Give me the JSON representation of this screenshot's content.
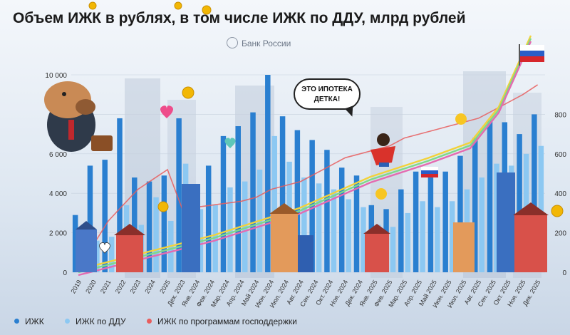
{
  "title": "Объем ИЖК в рублях, в том числе ИЖК по ДДУ, млрд рублей",
  "source": "Банк России",
  "speech_bubble": "ЭТО ИПОТЕКА ДЕТКА!",
  "colors": {
    "izhk": "#2a7fd0",
    "izhk_ddu": "#8cc8f2",
    "gov_programs": "#e85d5d",
    "trend_yellow": "#f2d23a",
    "trend_green": "#7fd88a",
    "trend_pink": "#e46bb0"
  },
  "icons": [
    "capybara-mascot-icon",
    "flag-russia-icon",
    "coin-icon",
    "house-icon",
    "superhero-character-icon",
    "heart-icon",
    "smiley-icon"
  ],
  "chart_data": {
    "type": "bar",
    "categories": [
      "2019",
      "2020",
      "2021",
      "2022",
      "2023",
      "2024",
      "2025",
      "Дек. 2023",
      "Янв. 2024",
      "Фев. 2024",
      "Мар. 2024",
      "Апр. 2024",
      "Май 2024",
      "Июн. 2024",
      "Июл. 2024",
      "Авг. 2024",
      "Сен. 2024",
      "Окт. 2024",
      "Ноя. 2024",
      "Дек. 2024",
      "Янв. 2025",
      "Фев. 2025",
      "Мар. 2025",
      "Апр. 2025",
      "Май 2025",
      "Июн. 2025",
      "Июл. 2025",
      "Авг. 2025",
      "Сен. 2025",
      "Окт. 2025",
      "Ноя. 2025",
      "Дек. 2025"
    ],
    "left_axis": {
      "ticks": [
        "0",
        "2 000",
        "4 000",
        "6 000",
        "8 000",
        "10 000"
      ],
      "ylim": [
        0,
        10000
      ]
    },
    "right_axis": {
      "ticks": [
        "0",
        "200",
        "400",
        "600",
        "800"
      ],
      "ylim": [
        0,
        1000
      ]
    },
    "series": [
      {
        "name": "ИЖК",
        "axis": "left",
        "values": [
          2900,
          5400,
          5700,
          7800,
          4800,
          4600,
          4900,
          780,
          430,
          540,
          690,
          740,
          810,
          1000,
          790,
          720,
          670,
          620,
          530,
          490,
          340,
          320,
          420,
          510,
          480,
          510,
          590,
          680,
          770,
          760,
          700,
          800
        ]
      },
      {
        "name": "ИЖК по ДДУ",
        "axis": "left",
        "values": [
          1000,
          1600,
          1800,
          3400,
          2400,
          3800,
          2600,
          550,
          320,
          340,
          430,
          460,
          520,
          690,
          560,
          480,
          450,
          420,
          370,
          330,
          240,
          230,
          300,
          360,
          330,
          360,
          420,
          480,
          550,
          540,
          600,
          640
        ]
      },
      {
        "name": "ИЖК по программам господдержки",
        "axis": "right",
        "values": [
          50,
          140,
          260,
          340,
          420,
          470,
          520,
          320,
          330,
          340,
          350,
          360,
          380,
          420,
          440,
          460,
          500,
          540,
          580,
          600,
          620,
          640,
          680,
          700,
          720,
          740,
          760,
          780,
          820,
          860,
          900,
          950
        ]
      }
    ],
    "xlabel": "",
    "ylabel": "",
    "legend_position": "bottom",
    "grid": true
  }
}
